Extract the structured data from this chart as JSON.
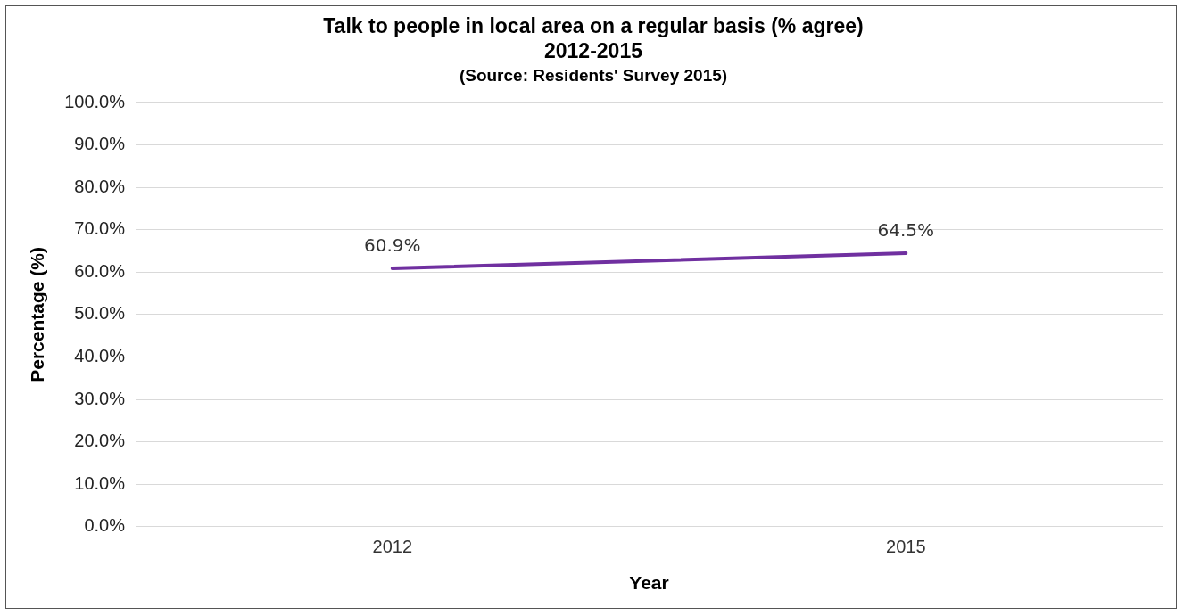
{
  "chart_data": {
    "type": "line",
    "title": "Talk to people in local area on a regular basis (% agree)\n2012-2015",
    "subtitle": "(Source: Residents' Survey 2015)",
    "xlabel": "Year",
    "ylabel": "Percentage (%)",
    "categories": [
      "2012",
      "2015"
    ],
    "series": [
      {
        "color": "#7030a0",
        "values": [
          60.9,
          64.5
        ],
        "value_labels": [
          "60.9%",
          "64.5%"
        ]
      }
    ],
    "ylim": [
      0,
      100
    ],
    "yticks": [
      {
        "value": 0,
        "label": "0.0%"
      },
      {
        "value": 10,
        "label": "10.0%"
      },
      {
        "value": 20,
        "label": "20.0%"
      },
      {
        "value": 30,
        "label": "30.0%"
      },
      {
        "value": 40,
        "label": "40.0%"
      },
      {
        "value": 50,
        "label": "50.0%"
      },
      {
        "value": 60,
        "label": "60.0%"
      },
      {
        "value": 70,
        "label": "70.0%"
      },
      {
        "value": 80,
        "label": "80.0%"
      },
      {
        "value": 90,
        "label": "90.0%"
      },
      {
        "value": 100,
        "label": "100.0%"
      }
    ],
    "grid": "y",
    "legend": false,
    "marker": "none",
    "line_style": "solid"
  }
}
